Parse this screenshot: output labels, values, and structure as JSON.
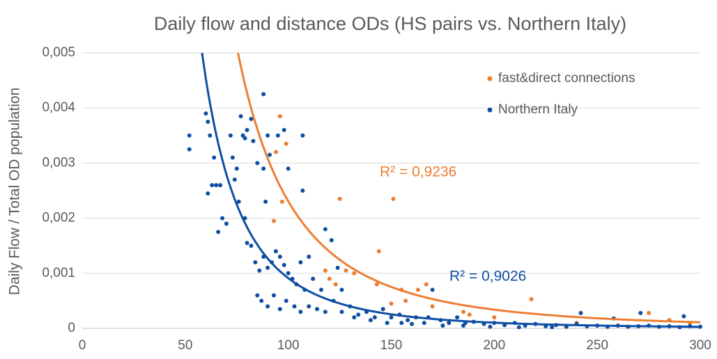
{
  "chart_data": {
    "type": "scatter",
    "title": "Daily flow and distance ODs (HS pairs vs. Northern Italy)",
    "y_label": "Daily Flow / Total OD population",
    "xlim": [
      0,
      300
    ],
    "xticks": [
      0,
      50,
      100,
      150,
      200,
      250,
      300
    ],
    "ylim": [
      0,
      0.005
    ],
    "yticks": [
      0,
      {
        "value": 0.001,
        "label": "0,001"
      },
      {
        "value": 0.002,
        "label": "0,002"
      },
      {
        "value": 0.003,
        "label": "0,003"
      },
      {
        "value": 0.004,
        "label": "0,004"
      },
      {
        "value": 0.005,
        "label": "0,005"
      }
    ],
    "grid": true,
    "trendline": "power",
    "legend": "upper right",
    "series": [
      {
        "name": "fast&direct connections",
        "color": "#ed7d31",
        "annotation": "R² = 0,9236",
        "x": [
          96,
          94,
          99,
          93,
          97,
          125,
          151,
          144,
          118,
          120,
          128,
          132,
          123,
          143,
          155,
          163,
          167,
          150,
          157,
          185,
          188,
          218,
          240,
          275,
          285,
          295,
          200,
          170
        ],
        "values": [
          0.00385,
          0.0032,
          0.00335,
          0.00195,
          0.0023,
          0.00235,
          0.00235,
          0.0014,
          0.00105,
          0.0009,
          0.00105,
          0.001,
          0.0008,
          0.0008,
          0.0007,
          0.0007,
          0.0008,
          0.00045,
          0.0005,
          0.0003,
          0.00025,
          0.00053,
          0.0001,
          0.00028,
          0.00015,
          0.0001,
          0.0002,
          0.0004
        ]
      },
      {
        "name": "Northern Italy",
        "color": "#0e4ea3",
        "annotation": "R² = 0,9026",
        "x": [
          52,
          52,
          60,
          61,
          62,
          61,
          63,
          65,
          64,
          67,
          66,
          68,
          70,
          72,
          73,
          74,
          75,
          76,
          77,
          78,
          79,
          80,
          82,
          83,
          85,
          88,
          88,
          90,
          91,
          95,
          98,
          107,
          107,
          100,
          89,
          79,
          80,
          82,
          84,
          86,
          88,
          90,
          92,
          94,
          96,
          98,
          100,
          102,
          104,
          106,
          108,
          110,
          112,
          116,
          118,
          121,
          124,
          126,
          85,
          87,
          90,
          93,
          96,
          99,
          103,
          106,
          110,
          114,
          118,
          122,
          126,
          130,
          134,
          138,
          142,
          146,
          150,
          154,
          158,
          162,
          166,
          170,
          168,
          174,
          178,
          182,
          186,
          190,
          195,
          200,
          205,
          210,
          215,
          220,
          225,
          230,
          235,
          240,
          242,
          245,
          250,
          255,
          258,
          260,
          265,
          270,
          271,
          275,
          280,
          285,
          290,
          292,
          295,
          300,
          148,
          155,
          160,
          175,
          185,
          198,
          212,
          228,
          140,
          132
        ],
        "values": [
          0.0035,
          0.00325,
          0.0039,
          0.00375,
          0.0035,
          0.00245,
          0.0026,
          0.0026,
          0.0031,
          0.0026,
          0.00175,
          0.002,
          0.0019,
          0.0035,
          0.0031,
          0.0027,
          0.0029,
          0.0023,
          0.00385,
          0.0035,
          0.00345,
          0.0036,
          0.0038,
          0.0034,
          0.003,
          0.00425,
          0.0029,
          0.0035,
          0.00315,
          0.0035,
          0.0036,
          0.0035,
          0.0025,
          0.0029,
          0.0023,
          0.002,
          0.00155,
          0.0015,
          0.0012,
          0.00105,
          0.0013,
          0.0011,
          0.0012,
          0.0014,
          0.0013,
          0.00115,
          0.001,
          0.0009,
          0.0008,
          0.0012,
          0.0007,
          0.0013,
          0.0009,
          0.0007,
          0.0018,
          0.0016,
          0.0011,
          0.0007,
          0.0006,
          0.0005,
          0.0004,
          0.0006,
          0.00035,
          0.0005,
          0.0004,
          0.0003,
          0.0004,
          0.00035,
          0.0003,
          0.0005,
          0.0003,
          0.0004,
          0.00025,
          0.0003,
          0.0002,
          0.00035,
          0.0002,
          0.00025,
          0.00015,
          0.0002,
          0.0001,
          0.0007,
          0.0002,
          0.00015,
          0.0001,
          0.0002,
          0.0001,
          0.00012,
          8e-05,
          0.0001,
          6e-05,
          0.0001,
          5e-05,
          8e-05,
          4e-05,
          6e-05,
          3e-05,
          8e-05,
          0.00028,
          4e-05,
          5e-05,
          3e-05,
          0.00018,
          5e-05,
          3e-05,
          4e-05,
          0.00028,
          5e-05,
          3e-05,
          4e-05,
          2e-05,
          0.00022,
          4e-05,
          3e-05,
          0.0001,
          0.0001,
          8e-05,
          5e-05,
          5e-05,
          3e-05,
          2e-05,
          2e-05,
          0.00015,
          0.0002
        ]
      }
    ]
  }
}
